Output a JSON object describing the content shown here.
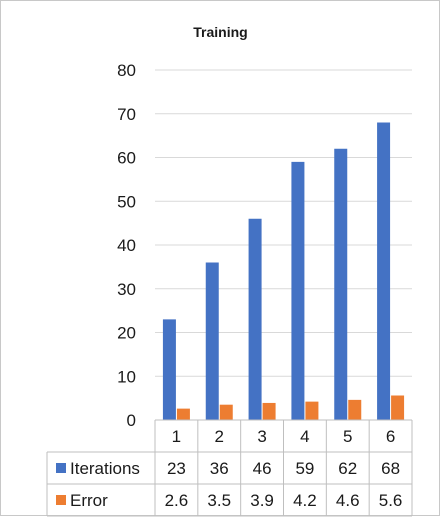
{
  "chart_data": {
    "type": "bar",
    "title": "Training",
    "categories": [
      "1",
      "2",
      "3",
      "4",
      "5",
      "6"
    ],
    "series": [
      {
        "name": "Iterations",
        "values": [
          23,
          36,
          46,
          59,
          62,
          68
        ],
        "color": "#4472C4"
      },
      {
        "name": "Error",
        "values": [
          2.6,
          3.5,
          3.9,
          4.2,
          4.6,
          5.6
        ],
        "color": "#ED7D31"
      }
    ],
    "ylim": [
      0,
      80
    ],
    "yticks": [
      "0",
      "10",
      "20",
      "30",
      "40",
      "50",
      "60",
      "70",
      "80"
    ],
    "data_table": {
      "rows": [
        {
          "label": "Iterations",
          "cells": [
            "23",
            "36",
            "46",
            "59",
            "62",
            "68"
          ]
        },
        {
          "label": "Error",
          "cells": [
            "2.6",
            "3.5",
            "3.9",
            "4.2",
            "4.6",
            "5.6"
          ]
        }
      ]
    },
    "grid": true,
    "legend": "in data table"
  }
}
